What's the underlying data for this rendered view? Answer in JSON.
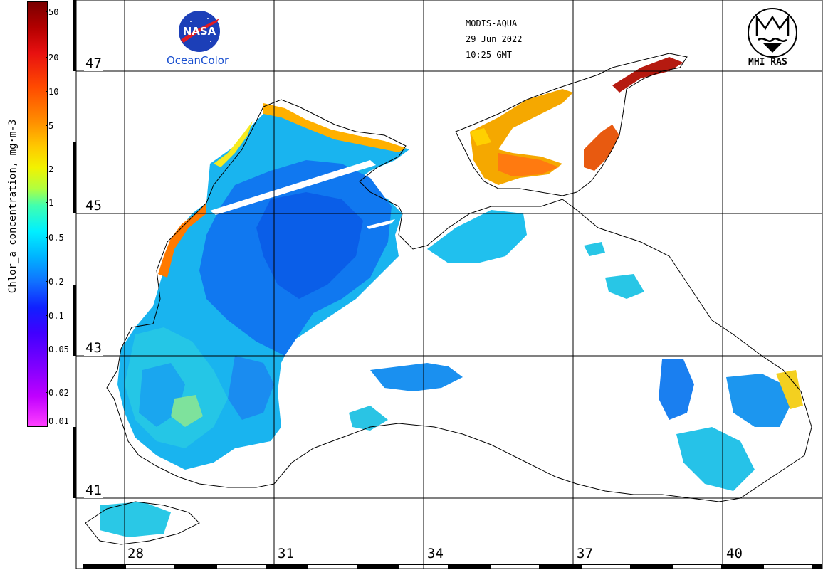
{
  "colorbar": {
    "title": "Chlor_a concentration, mg·m-3",
    "ticks": [
      "50",
      "20",
      "10",
      "5",
      "2",
      "1",
      "0.5",
      "0.2",
      "0.1",
      "0.05",
      "0.02",
      "0.01"
    ]
  },
  "header": {
    "sensor": "MODIS-AQUA",
    "date": "29 Jun 2022",
    "time": "10:25 GMT"
  },
  "logos": {
    "nasa_text": "NASA",
    "oceancolor_text": "OceanColor",
    "mhi_text": "MHI RAS"
  },
  "grid": {
    "latitudes": [
      "47",
      "45",
      "43",
      "41"
    ],
    "longitudes": [
      "28",
      "31",
      "34",
      "37",
      "40"
    ]
  },
  "colors": {
    "high": "#b30000",
    "mid": "#f2f200",
    "low": "#1070ff",
    "very_low": "#ff40ff"
  }
}
